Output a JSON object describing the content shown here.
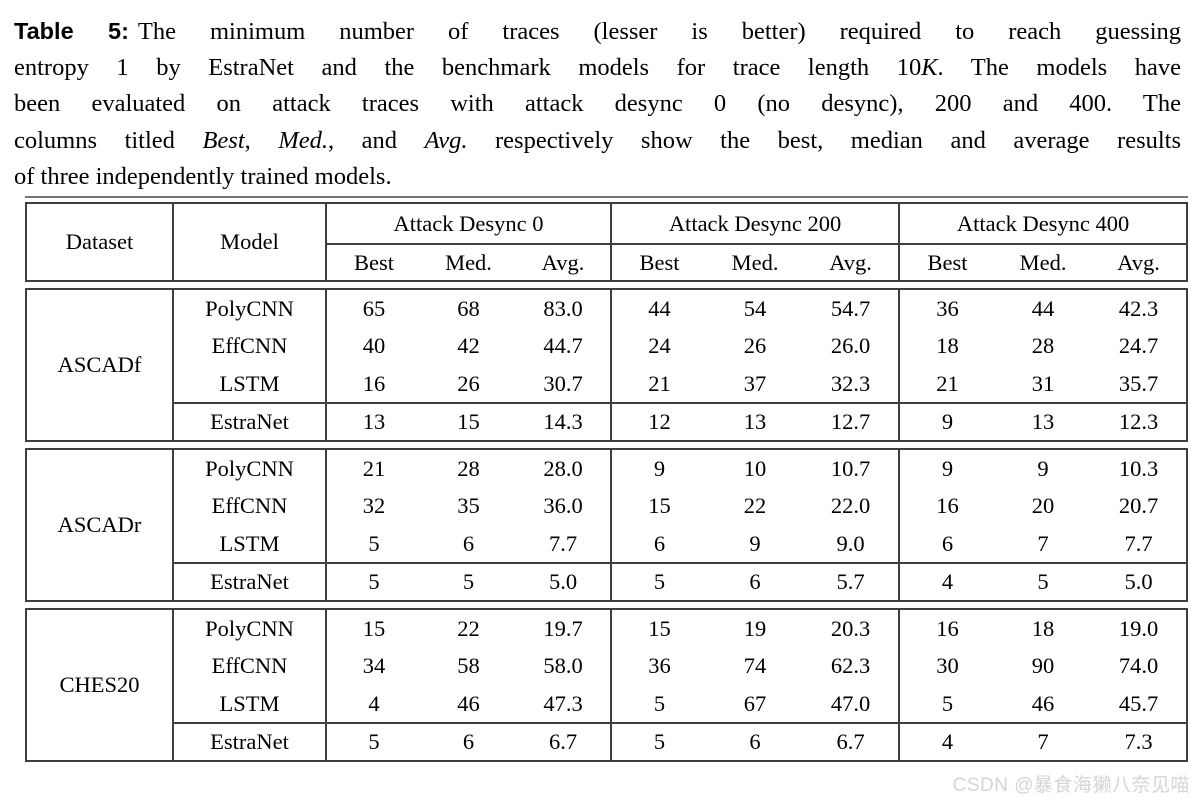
{
  "caption": {
    "tag": "Table 5:",
    "lines": [
      {
        "justify": true,
        "runs": [
          {
            "t": "The minimum number of traces (lesser is better) required to reach guessing",
            "i": false
          }
        ]
      },
      {
        "justify": true,
        "runs": [
          {
            "t": "entropy 1 by EstraNet and the benchmark models for trace length 10",
            "i": false
          },
          {
            "t": "K",
            "i": true
          },
          {
            "t": ". The models have",
            "i": false
          }
        ]
      },
      {
        "justify": true,
        "runs": [
          {
            "t": "been evaluated on attack traces with attack desync 0 (no desync), 200 and 400. The",
            "i": false
          }
        ]
      },
      {
        "justify": true,
        "runs": [
          {
            "t": "columns titled ",
            "i": false
          },
          {
            "t": "Best",
            "i": true
          },
          {
            "t": ", ",
            "i": false
          },
          {
            "t": "Med.",
            "i": true
          },
          {
            "t": ", and ",
            "i": false
          },
          {
            "t": "Avg.",
            "i": true
          },
          {
            "t": " respectively show the best, median and average results",
            "i": false
          }
        ]
      },
      {
        "justify": false,
        "runs": [
          {
            "t": "of three independently trained models.",
            "i": false
          }
        ]
      }
    ]
  },
  "table": {
    "header": {
      "dataset": "Dataset",
      "model": "Model",
      "groups": [
        "Attack Desync 0",
        "Attack Desync 200",
        "Attack Desync 400"
      ],
      "sub_labels": [
        "Best",
        "Med.",
        "Avg."
      ]
    },
    "blocks": [
      {
        "dataset": "ASCADf",
        "rows": [
          {
            "model": "PolyCNN",
            "separator": false,
            "values": [
              "65",
              "68",
              "83.0",
              "44",
              "54",
              "54.7",
              "36",
              "44",
              "42.3"
            ]
          },
          {
            "model": "EffCNN",
            "separator": false,
            "values": [
              "40",
              "42",
              "44.7",
              "24",
              "26",
              "26.0",
              "18",
              "28",
              "24.7"
            ]
          },
          {
            "model": "LSTM",
            "separator": false,
            "values": [
              "16",
              "26",
              "30.7",
              "21",
              "37",
              "32.3",
              "21",
              "31",
              "35.7"
            ]
          },
          {
            "model": "EstraNet",
            "separator": true,
            "values": [
              "13",
              "15",
              "14.3",
              "12",
              "13",
              "12.7",
              "9",
              "13",
              "12.3"
            ]
          }
        ]
      },
      {
        "dataset": "ASCADr",
        "rows": [
          {
            "model": "PolyCNN",
            "separator": false,
            "values": [
              "21",
              "28",
              "28.0",
              "9",
              "10",
              "10.7",
              "9",
              "9",
              "10.3"
            ]
          },
          {
            "model": "EffCNN",
            "separator": false,
            "values": [
              "32",
              "35",
              "36.0",
              "15",
              "22",
              "22.0",
              "16",
              "20",
              "20.7"
            ]
          },
          {
            "model": "LSTM",
            "separator": false,
            "values": [
              "5",
              "6",
              "7.7",
              "6",
              "9",
              "9.0",
              "6",
              "7",
              "7.7"
            ]
          },
          {
            "model": "EstraNet",
            "separator": true,
            "values": [
              "5",
              "5",
              "5.0",
              "5",
              "6",
              "5.7",
              "4",
              "5",
              "5.0"
            ]
          }
        ]
      },
      {
        "dataset": "CHES20",
        "rows": [
          {
            "model": "PolyCNN",
            "separator": false,
            "values": [
              "15",
              "22",
              "19.7",
              "15",
              "19",
              "20.3",
              "16",
              "18",
              "19.0"
            ]
          },
          {
            "model": "EffCNN",
            "separator": false,
            "values": [
              "34",
              "58",
              "58.0",
              "36",
              "74",
              "62.3",
              "30",
              "90",
              "74.0"
            ]
          },
          {
            "model": "LSTM",
            "separator": false,
            "values": [
              "4",
              "46",
              "47.3",
              "5",
              "67",
              "47.0",
              "5",
              "46",
              "45.7"
            ]
          },
          {
            "model": "EstraNet",
            "separator": true,
            "values": [
              "5",
              "6",
              "6.7",
              "5",
              "6",
              "6.7",
              "4",
              "7",
              "7.3"
            ]
          }
        ]
      }
    ]
  },
  "watermark": {
    "text": "CSDN @暴食海獭八奈见喵"
  },
  "colors": {
    "border": "#3f3f3f",
    "text": "#000000",
    "watermark": "#d5d5d5",
    "top_rule": "#757575"
  }
}
